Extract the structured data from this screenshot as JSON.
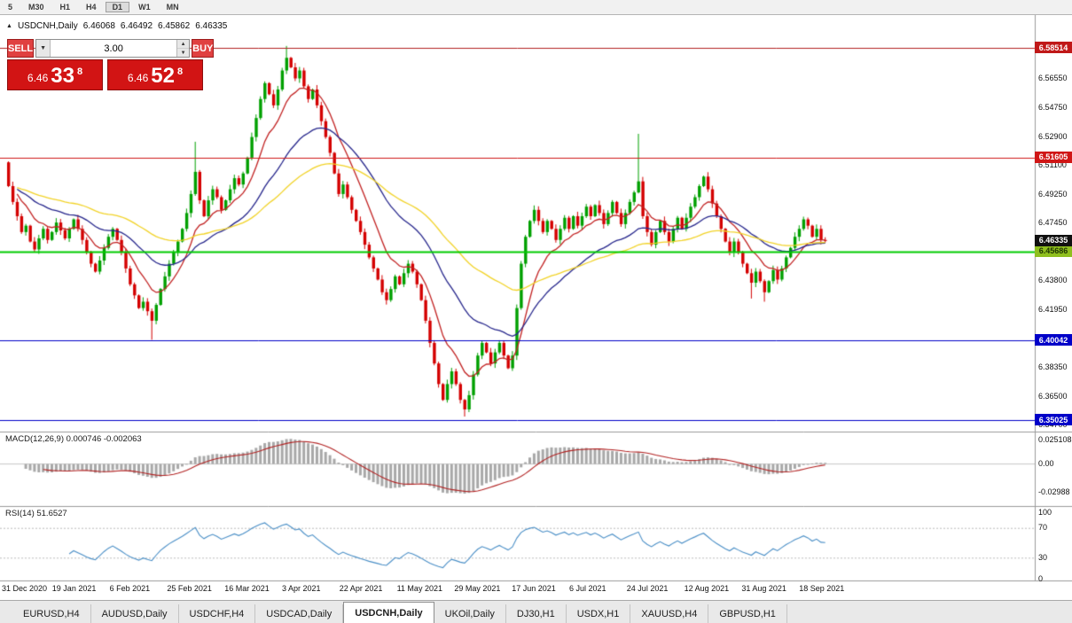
{
  "toolbar": {
    "timeframes": [
      "5",
      "M30",
      "H1",
      "H4",
      "D1",
      "W1",
      "MN"
    ],
    "active_timeframe": "D1"
  },
  "chart_header": {
    "collapse_icon": "▲",
    "symbol": "USDCNH,Daily",
    "open": "6.46068",
    "high": "6.46492",
    "low": "6.45862",
    "close": "6.46335"
  },
  "trade_panel": {
    "sell_label": "SELL",
    "buy_label": "BUY",
    "volume": "3.00",
    "dropdown_icon": "▼",
    "spin_up_icon": "▲",
    "spin_down_icon": "▼",
    "sell_price": {
      "base": "6.46",
      "big": "33",
      "sup": "8"
    },
    "buy_price": {
      "base": "6.46",
      "big": "52",
      "sup": "8"
    }
  },
  "indicators": {
    "macd_label": "MACD(12,26,9) 0.000746 -0.002063",
    "rsi_label": "RSI(14) 51.6527"
  },
  "price_axis": {
    "ticks": [
      "6.56550",
      "6.54750",
      "6.52900",
      "6.51100",
      "6.49250",
      "6.47450",
      "6.45600",
      "6.43800",
      "6.41950",
      "6.40150",
      "6.38350",
      "6.36500",
      "6.34700"
    ]
  },
  "macd_axis": [
    "0.025108",
    "0.00",
    "-0.02988"
  ],
  "rsi_axis": [
    "100",
    "70",
    "30",
    "0"
  ],
  "dates": [
    "31 Dec 2020",
    "19 Jan 2021",
    "6 Feb 2021",
    "25 Feb 2021",
    "16 Mar 2021",
    "3 Apr 2021",
    "22 Apr 2021",
    "11 May 2021",
    "29 May 2021",
    "17 Jun 2021",
    "6 Jul 2021",
    "24 Jul 2021",
    "12 Aug 2021",
    "31 Aug 2021",
    "18 Sep 2021"
  ],
  "tabs": {
    "items": [
      "EURUSD,H4",
      "AUDUSD,Daily",
      "USDCHF,H4",
      "USDCAD,Daily",
      "USDCNH,Daily",
      "UKOil,Daily",
      "DJ30,H1",
      "USDX,H1",
      "XAUUSD,H4",
      "GBPUSD,H1"
    ],
    "active_index": 4
  },
  "chart_data": {
    "type": "candlestick",
    "title": "USDCNH, Daily",
    "timeframe": "Daily",
    "price_range": {
      "top": 6.606,
      "bottom": 6.343
    },
    "first_open": 6.513,
    "closes": [
      6.498,
      6.488,
      6.479,
      6.469,
      6.473,
      6.463,
      6.458,
      6.465,
      6.471,
      6.464,
      6.469,
      6.475,
      6.47,
      6.465,
      6.471,
      6.477,
      6.471,
      6.464,
      6.456,
      6.449,
      6.444,
      6.451,
      6.459,
      6.466,
      6.471,
      6.464,
      6.456,
      6.446,
      6.436,
      6.429,
      6.421,
      6.425,
      6.419,
      6.413,
      6.423,
      6.433,
      6.441,
      6.449,
      6.456,
      6.463,
      6.471,
      6.481,
      6.493,
      6.507,
      6.489,
      6.479,
      6.489,
      6.496,
      6.491,
      6.483,
      6.489,
      6.496,
      6.503,
      6.499,
      6.506,
      6.516,
      6.529,
      6.541,
      6.553,
      6.563,
      6.556,
      6.549,
      6.559,
      6.571,
      6.579,
      6.573,
      6.566,
      6.571,
      6.561,
      6.553,
      6.559,
      6.549,
      6.539,
      6.529,
      6.519,
      6.506,
      6.493,
      6.499,
      6.491,
      6.483,
      6.476,
      6.469,
      6.461,
      6.453,
      6.446,
      6.439,
      6.431,
      6.426,
      6.433,
      6.441,
      6.436,
      6.443,
      6.449,
      6.444,
      6.436,
      6.426,
      6.413,
      6.399,
      6.386,
      6.373,
      6.363,
      6.373,
      6.381,
      6.373,
      6.363,
      6.357,
      6.366,
      6.379,
      6.391,
      6.399,
      6.393,
      6.386,
      6.393,
      6.399,
      6.391,
      6.383,
      6.391,
      6.421,
      6.449,
      6.466,
      6.476,
      6.483,
      6.476,
      6.469,
      6.476,
      6.471,
      6.464,
      6.471,
      6.478,
      6.471,
      6.479,
      6.473,
      6.479,
      6.485,
      6.479,
      6.486,
      6.481,
      6.474,
      6.481,
      6.488,
      6.481,
      6.474,
      6.481,
      6.488,
      6.494,
      6.501,
      6.479,
      6.469,
      6.461,
      6.469,
      6.476,
      6.469,
      6.463,
      6.471,
      6.478,
      6.471,
      6.478,
      6.485,
      6.491,
      6.498,
      6.504,
      6.496,
      6.487,
      6.479,
      6.471,
      6.463,
      6.456,
      6.463,
      6.456,
      6.449,
      6.443,
      6.437,
      6.444,
      6.438,
      6.431,
      6.438,
      6.445,
      6.439,
      6.446,
      6.453,
      6.459,
      6.466,
      6.471,
      6.477,
      6.473,
      6.466,
      6.471,
      6.464,
      6.4634
    ],
    "wick_highs": {
      "43": 6.526,
      "64": 6.5865,
      "145": 6.531
    },
    "wick_lows": {
      "33": 6.401,
      "105": 6.3525,
      "171": 6.427,
      "174": 6.425
    },
    "colors": {
      "up": "#00a000",
      "down": "#d40000"
    },
    "moving_averages": [
      {
        "period": 10,
        "color": "#c22222"
      },
      {
        "period": 28,
        "color": "#26268c"
      },
      {
        "period": 60,
        "color": "#f2d327"
      }
    ],
    "hlines": [
      {
        "price": 6.58514,
        "label": "6.58514",
        "color": "#b22020",
        "lw": 1,
        "badge_bg": "#c01818",
        "badge_fg": "#ffffff"
      },
      {
        "price": 6.51605,
        "label": "6.51605",
        "color": "#d01616",
        "lw": 1,
        "badge_bg": "#d01616",
        "badge_fg": "#ffffff"
      },
      {
        "price": 6.45686,
        "label": "6.45686",
        "color": "#00cc00",
        "lw": 2,
        "badge_bg": "#8fbf1e",
        "badge_fg": "#1c3300"
      },
      {
        "price": 6.40042,
        "label": "6.40042",
        "color": "#0000c8",
        "lw": 1,
        "badge_bg": "#0000c8",
        "badge_fg": "#ffffff"
      },
      {
        "price": 6.35025,
        "label": "6.35025",
        "color": "#0000c8",
        "lw": 1,
        "badge_bg": "#0000c8",
        "badge_fg": "#ffffff"
      }
    ],
    "current_price": {
      "price": 6.46335,
      "label": "6.46335",
      "badge_bg": "#101010",
      "badge_fg": "#ffffff"
    },
    "macd": {
      "fast": 12,
      "slow": 26,
      "signal": 9,
      "hist_color": "#a8a8a8",
      "line_color": "#b22222",
      "range_max": 0.034,
      "range_min": -0.044,
      "value_main": 0.000746,
      "value_signal": -0.002063
    },
    "rsi": {
      "period": 14,
      "color": "#4a8fc7",
      "levels": [
        70,
        30
      ],
      "value": 51.6527
    }
  }
}
